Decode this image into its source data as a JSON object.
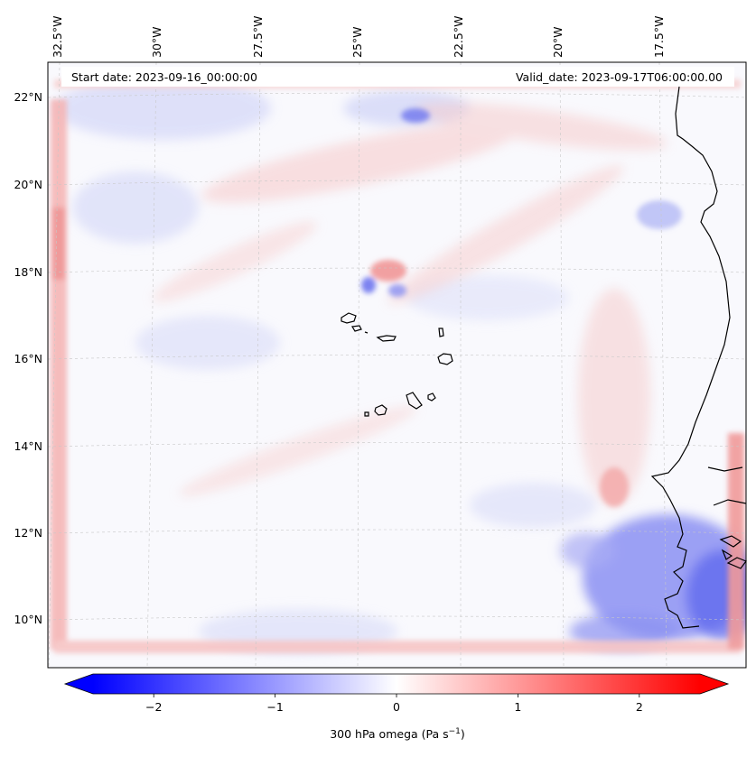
{
  "map": {
    "header": {
      "start_date": "Start date: 2023-09-16_00:00:00",
      "valid_date": "Valid_date: 2023-09-17T06:00:00.00"
    },
    "lon_labels": [
      "32.5°W",
      "30°W",
      "27.5°W",
      "25°W",
      "22.5°W",
      "20°W",
      "17.5°W"
    ],
    "lat_labels": [
      "22°N",
      "20°N",
      "18°N",
      "16°N",
      "14°N",
      "12°N",
      "10°N"
    ],
    "field": "300 hPa omega",
    "colors": {
      "negative": "#0000ff",
      "positive": "#ff0000",
      "neutral": "#ffffff",
      "coastline": "#000000",
      "gridline": "#c8c8c8"
    }
  },
  "colorbar": {
    "ticks": [
      -2,
      -1,
      0,
      1,
      2
    ],
    "tick_labels": [
      "−2",
      "−1",
      "0",
      "1",
      "2"
    ],
    "range": [
      -2.5,
      2.5
    ],
    "extend": "both",
    "label_main": "300 hPa omega (Pa s",
    "label_exp": "−1",
    "label_close": ")"
  }
}
